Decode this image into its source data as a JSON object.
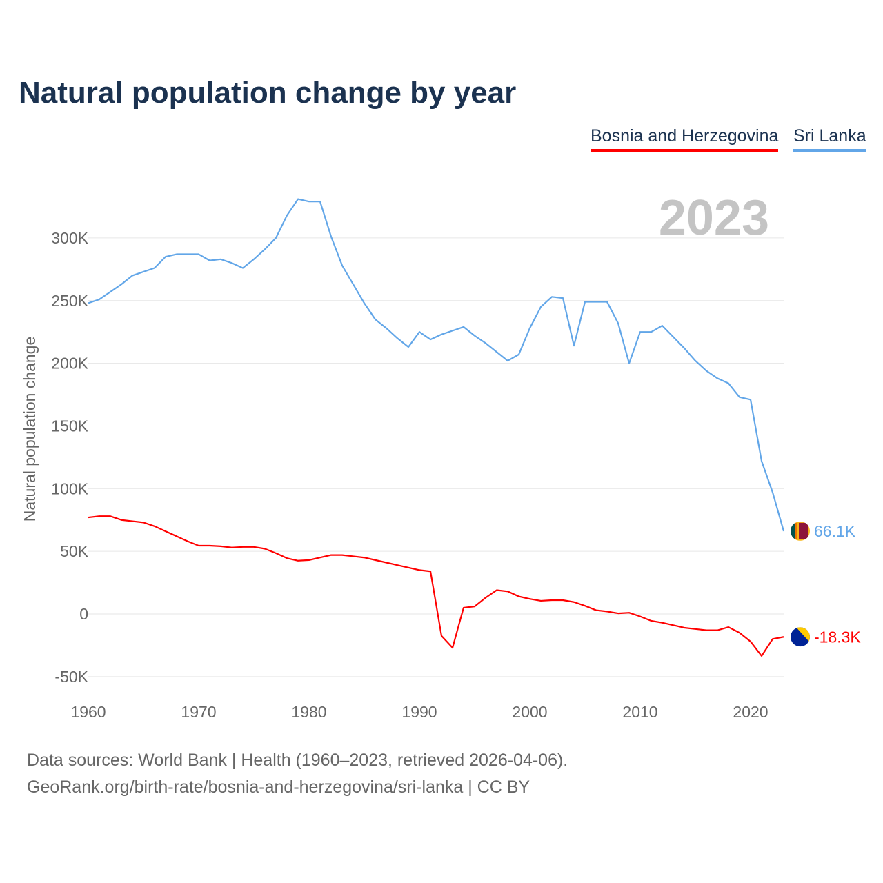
{
  "chart_data": {
    "type": "line",
    "title": "Natural population change by year",
    "xlabel": "",
    "ylabel": "Natural population change",
    "year_label": "2023",
    "xlim": [
      1960,
      2023
    ],
    "ylim": [
      -50000,
      300000
    ],
    "x_ticks": [
      1960,
      1970,
      1980,
      1990,
      2000,
      2010,
      2020
    ],
    "y_ticks": [
      {
        "v": -50000,
        "label": "-50K"
      },
      {
        "v": 0,
        "label": "0"
      },
      {
        "v": 50000,
        "label": "50K"
      },
      {
        "v": 100000,
        "label": "100K"
      },
      {
        "v": 150000,
        "label": "150K"
      },
      {
        "v": 200000,
        "label": "200K"
      },
      {
        "v": 250000,
        "label": "250K"
      },
      {
        "v": 300000,
        "label": "300K"
      }
    ],
    "grid": true,
    "legend_placement": "top-right",
    "x_start": 1960,
    "series": [
      {
        "name": "Bosnia and Herzegovina",
        "color": "#ff0000",
        "end_label": "-18.3K",
        "flag": "bosnia-flag",
        "values": [
          77,
          78,
          78,
          75,
          74,
          73,
          70,
          66,
          62,
          58,
          54.5,
          54.5,
          54,
          53,
          53.5,
          53.5,
          52,
          48.5,
          44.5,
          42.5,
          43,
          45,
          47,
          47,
          46,
          45,
          43,
          41,
          39,
          37,
          35,
          34,
          -17.5,
          -27,
          5,
          6,
          13,
          19,
          18,
          14,
          12,
          10.5,
          11,
          11,
          9.5,
          6.5,
          3,
          2,
          0.5,
          1,
          -2,
          -5.5,
          -7,
          -9,
          -11,
          -12,
          -13,
          -13,
          -10.5,
          -15,
          -22,
          -33.5,
          -20,
          -18.3
        ]
      },
      {
        "name": "Sri Lanka",
        "color": "#62a6e8",
        "end_label": "66.1K",
        "flag": "sri-lanka-flag",
        "values": [
          248,
          251,
          257,
          263,
          270,
          273,
          276,
          285,
          287,
          287,
          287,
          282,
          283,
          280,
          276,
          283,
          291,
          300,
          318,
          331,
          329,
          329,
          301,
          278,
          263,
          248,
          235,
          228,
          220,
          213,
          225,
          219,
          223,
          226,
          229,
          222,
          216,
          209,
          202,
          207,
          228,
          245,
          253,
          252,
          214,
          249,
          249,
          249,
          232,
          200,
          225,
          225,
          230,
          221,
          212,
          202,
          194,
          188,
          184,
          173,
          171,
          122,
          97,
          66.1
        ]
      }
    ],
    "value_unit": "thousands"
  },
  "sources": {
    "line1": "Data sources: World Bank | Health (1960–2023, retrieved 2026-04-06).",
    "line2": "GeoRank.org/birth-rate/bosnia-and-herzegovina/sri-lanka | CC BY"
  }
}
